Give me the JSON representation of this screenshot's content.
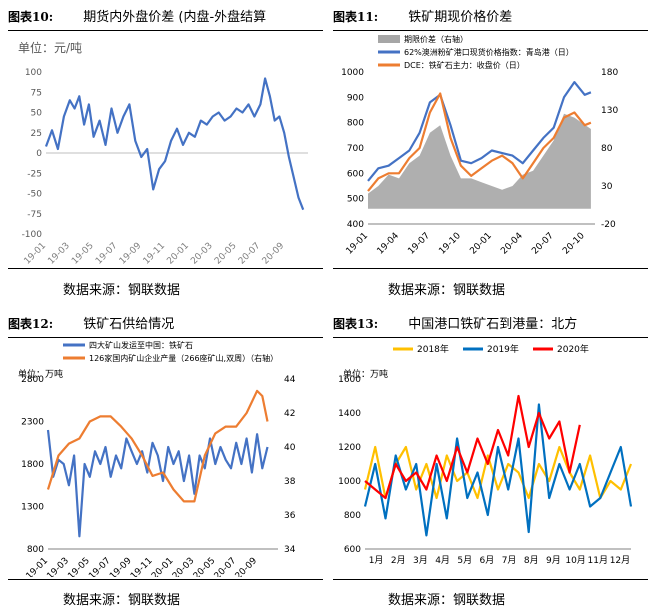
{
  "panels": [
    {
      "fig_label": "图表10:",
      "title": "期货内外盘价差 (内盘-外盘结算",
      "source": "数据来源：钢联数据",
      "unit": "单位：元/吨"
    },
    {
      "fig_label": "图表11:",
      "title": "铁矿期现价格价差",
      "source": "数据来源：钢联数据",
      "unit": ""
    },
    {
      "fig_label": "图表12:",
      "title": "铁矿石供给情况",
      "source": "数据来源：钢联数据",
      "unit": "单位：万吨"
    },
    {
      "fig_label": "图表13:",
      "title": "中国港口铁矿石到港量：北方",
      "source": "数据来源：钢联数据",
      "unit": "单位：万吨"
    }
  ],
  "chart_data": [
    {
      "type": "line",
      "title": "期货内外盘价差 (内盘-外盘结算",
      "ylabel": "单位：元/吨",
      "ylim": [
        -100,
        100
      ],
      "yticks": [
        -100,
        -75,
        -50,
        -25,
        0,
        25,
        50,
        75,
        100
      ],
      "xlim": [
        0,
        22
      ],
      "xticks": [
        "19-01",
        "19-03",
        "19-05",
        "19-07",
        "19-09",
        "19-11",
        "20-01",
        "20-03",
        "20-05",
        "20-07",
        "20-09"
      ],
      "xtick_pos": [
        0,
        2,
        4,
        6,
        8,
        10,
        12,
        14,
        16,
        18,
        20
      ],
      "grid": false,
      "colors": [
        "#4472C4"
      ],
      "series": [
        {
          "x": [
            0,
            0.5,
            1,
            1.5,
            2,
            2.4,
            2.8,
            3.2,
            3.6,
            4,
            4.5,
            5,
            5.5,
            6,
            6.5,
            7,
            7.5,
            8,
            8.5,
            9,
            9.5,
            10,
            10.5,
            11,
            11.5,
            12,
            12.5,
            13,
            13.5,
            14,
            14.5,
            15,
            15.5,
            16,
            16.5,
            17,
            17.5,
            18,
            18.4,
            18.8,
            19.2,
            19.6,
            20,
            20.4,
            20.8,
            21.2,
            21.6
          ],
          "y": [
            8,
            28,
            5,
            45,
            65,
            55,
            70,
            35,
            60,
            20,
            40,
            10,
            55,
            25,
            45,
            60,
            15,
            -5,
            5,
            -45,
            -20,
            -10,
            15,
            30,
            10,
            25,
            20,
            40,
            35,
            45,
            50,
            40,
            45,
            55,
            50,
            60,
            45,
            60,
            92,
            70,
            40,
            45,
            25,
            -5,
            -30,
            -55,
            -70
          ]
        }
      ]
    },
    {
      "type": "line",
      "title": "铁矿期现价格价差",
      "legend": [
        "期限价差（右轴）",
        "62%澳洲粉矿港口现货价格指数：青岛港（日）",
        "DCE：铁矿石主力：收盘价（日）"
      ],
      "legend_position": "top-left",
      "ylim": [
        400,
        1000
      ],
      "yticks": [
        400,
        500,
        600,
        700,
        800,
        900,
        1000
      ],
      "y2lim": [
        -20,
        180
      ],
      "y2ticks": [
        -20,
        30,
        80,
        130,
        180
      ],
      "xlim": [
        0,
        22
      ],
      "xticks": [
        "19-01",
        "19-04",
        "19-07",
        "19-10",
        "20-01",
        "20-04",
        "20-07",
        "20-10"
      ],
      "xtick_pos": [
        0,
        3,
        6,
        9,
        12,
        15,
        18,
        21
      ],
      "grid": false,
      "colors": [
        "#A6A6A6",
        "#4472C4",
        "#ED7D31"
      ],
      "series": [
        {
          "name": "期限价差（右轴）",
          "axis": "right",
          "kind": "area",
          "x": [
            0,
            1,
            2,
            3,
            4,
            5,
            6,
            7,
            8,
            9,
            10,
            11,
            12,
            13,
            14,
            15,
            16,
            17,
            18,
            19,
            20,
            21.6
          ],
          "y": [
            20,
            30,
            45,
            40,
            60,
            70,
            100,
            110,
            70,
            40,
            40,
            35,
            30,
            25,
            30,
            45,
            50,
            70,
            90,
            125,
            120,
            105
          ]
        },
        {
          "name": "62%澳洲粉矿港口现货价格指数：青岛港（日）",
          "axis": "left",
          "x": [
            0,
            1,
            2,
            3,
            4,
            5,
            6,
            7,
            8,
            9,
            10,
            11,
            12,
            13,
            14,
            15,
            16,
            17,
            18,
            19,
            20,
            21,
            21.6
          ],
          "y": [
            570,
            620,
            630,
            660,
            690,
            760,
            880,
            910,
            790,
            650,
            640,
            660,
            690,
            680,
            670,
            640,
            690,
            740,
            780,
            900,
            960,
            910,
            920
          ]
        },
        {
          "name": "DCE：铁矿石主力：收盘价（日）",
          "axis": "left",
          "x": [
            0,
            1,
            2,
            3,
            4,
            5,
            6,
            7,
            8,
            9,
            10,
            11,
            12,
            13,
            14,
            15,
            16,
            17,
            18,
            19,
            20,
            21,
            21.6
          ],
          "y": [
            530,
            580,
            600,
            600,
            660,
            700,
            840,
            915,
            740,
            630,
            590,
            620,
            650,
            670,
            640,
            580,
            640,
            700,
            740,
            820,
            840,
            790,
            800
          ]
        }
      ]
    },
    {
      "type": "line",
      "title": "铁矿石供给情况",
      "ylabel": "单位：万吨",
      "legend": [
        "四大矿山发运至中国：铁矿石",
        "126家国内矿山企业产量（266座矿山,双周）（右轴）"
      ],
      "legend_position": "top-center",
      "ylim": [
        800,
        2800
      ],
      "yticks": [
        800,
        1300,
        1800,
        2300,
        2800
      ],
      "y2lim": [
        34,
        44
      ],
      "y2ticks": [
        34,
        36,
        38,
        40,
        42,
        44
      ],
      "xlim": [
        0,
        22
      ],
      "xticks": [
        "19-01",
        "19-03",
        "19-05",
        "19-07",
        "19-09",
        "19-11",
        "20-01",
        "20-03",
        "20-05",
        "20-07",
        "20-09"
      ],
      "xtick_pos": [
        0,
        2,
        4,
        6,
        8,
        10,
        12,
        14,
        16,
        18,
        20
      ],
      "grid": false,
      "colors": [
        "#4472C4",
        "#ED7D31"
      ],
      "series": [
        {
          "name": "四大矿山发运至中国：铁矿石",
          "axis": "left",
          "x": [
            0,
            0.5,
            1,
            1.5,
            2,
            2.5,
            3,
            3.5,
            4,
            4.5,
            5,
            5.5,
            6,
            6.5,
            7,
            7.5,
            8,
            8.5,
            9,
            9.5,
            10,
            10.5,
            11,
            11.5,
            12,
            12.5,
            13,
            13.5,
            14,
            14.5,
            15,
            15.5,
            16,
            16.5,
            17,
            17.5,
            18,
            18.5,
            19,
            19.5,
            20,
            20.5,
            21
          ],
          "y": [
            2200,
            1650,
            1850,
            1800,
            1550,
            1900,
            950,
            1800,
            1650,
            1950,
            1800,
            2000,
            1650,
            1900,
            1750,
            2100,
            1950,
            1800,
            1950,
            1700,
            2050,
            1900,
            1600,
            2000,
            1800,
            1950,
            1600,
            1900,
            1450,
            1900,
            1750,
            2100,
            1800,
            2000,
            1850,
            1750,
            2050,
            1800,
            2100,
            1700,
            2150,
            1750,
            2000
          ]
        },
        {
          "name": "126家国内矿山企业产量（266座矿山,双周）（右轴）",
          "axis": "right",
          "x": [
            0,
            1,
            2,
            3,
            4,
            5,
            6,
            7,
            8,
            9,
            10,
            11,
            12,
            13,
            14,
            15,
            16,
            17,
            18,
            19,
            20,
            20.5,
            21
          ],
          "y": [
            37.5,
            39.5,
            40.2,
            40.5,
            41.5,
            41.8,
            41.8,
            41.2,
            40.5,
            39.5,
            38.3,
            38.5,
            37.5,
            36.8,
            36.8,
            39.5,
            40.8,
            41.2,
            41.2,
            42.0,
            43.3,
            43.0,
            41.5
          ]
        }
      ]
    },
    {
      "type": "line",
      "title": "中国港口铁矿石到港量：北方",
      "ylabel": "单位：万吨",
      "legend": [
        "2018年",
        "2019年",
        "2020年"
      ],
      "legend_position": "top-center",
      "ylim": [
        600,
        1600
      ],
      "yticks": [
        600,
        800,
        1000,
        1200,
        1400,
        1600
      ],
      "categories": [
        "1月",
        "2月",
        "3月",
        "4月",
        "5月",
        "6月",
        "7月",
        "8月",
        "9月",
        "10月",
        "11月",
        "12月"
      ],
      "xlim": [
        0,
        52
      ],
      "grid": false,
      "colors": [
        "#FFC000",
        "#0070C0",
        "#FF0000"
      ],
      "series": [
        {
          "name": "2018年",
          "x": [
            0,
            2,
            4,
            6,
            8,
            10,
            12,
            14,
            16,
            18,
            20,
            22,
            24,
            26,
            28,
            30,
            32,
            34,
            36,
            38,
            40,
            42,
            44,
            46,
            48,
            50,
            52
          ],
          "y": [
            950,
            1200,
            900,
            1100,
            1200,
            950,
            1100,
            900,
            1150,
            1000,
            1050,
            900,
            1150,
            950,
            1100,
            1050,
            900,
            1100,
            1000,
            1200,
            1050,
            950,
            1150,
            900,
            1000,
            950,
            1100
          ]
        },
        {
          "name": "2019年",
          "x": [
            0,
            2,
            4,
            6,
            8,
            10,
            12,
            14,
            16,
            18,
            20,
            22,
            24,
            26,
            28,
            30,
            32,
            34,
            36,
            38,
            40,
            42,
            44,
            46,
            48,
            50,
            52
          ],
          "y": [
            850,
            1100,
            780,
            1150,
            950,
            1100,
            680,
            1100,
            780,
            1250,
            900,
            1050,
            800,
            1200,
            950,
            1250,
            700,
            1450,
            900,
            1100,
            950,
            1100,
            850,
            900,
            1050,
            1200,
            850
          ]
        },
        {
          "name": "2020年",
          "x": [
            0,
            2,
            4,
            6,
            8,
            10,
            12,
            14,
            16,
            18,
            20,
            22,
            24,
            26,
            28,
            30,
            32,
            34,
            36,
            38,
            40,
            42
          ],
          "y": [
            1000,
            950,
            900,
            1100,
            1000,
            1050,
            950,
            1150,
            1000,
            1200,
            1050,
            1250,
            1100,
            1300,
            1150,
            1500,
            1200,
            1400,
            1250,
            1350,
            1050,
            1330
          ]
        }
      ]
    }
  ]
}
